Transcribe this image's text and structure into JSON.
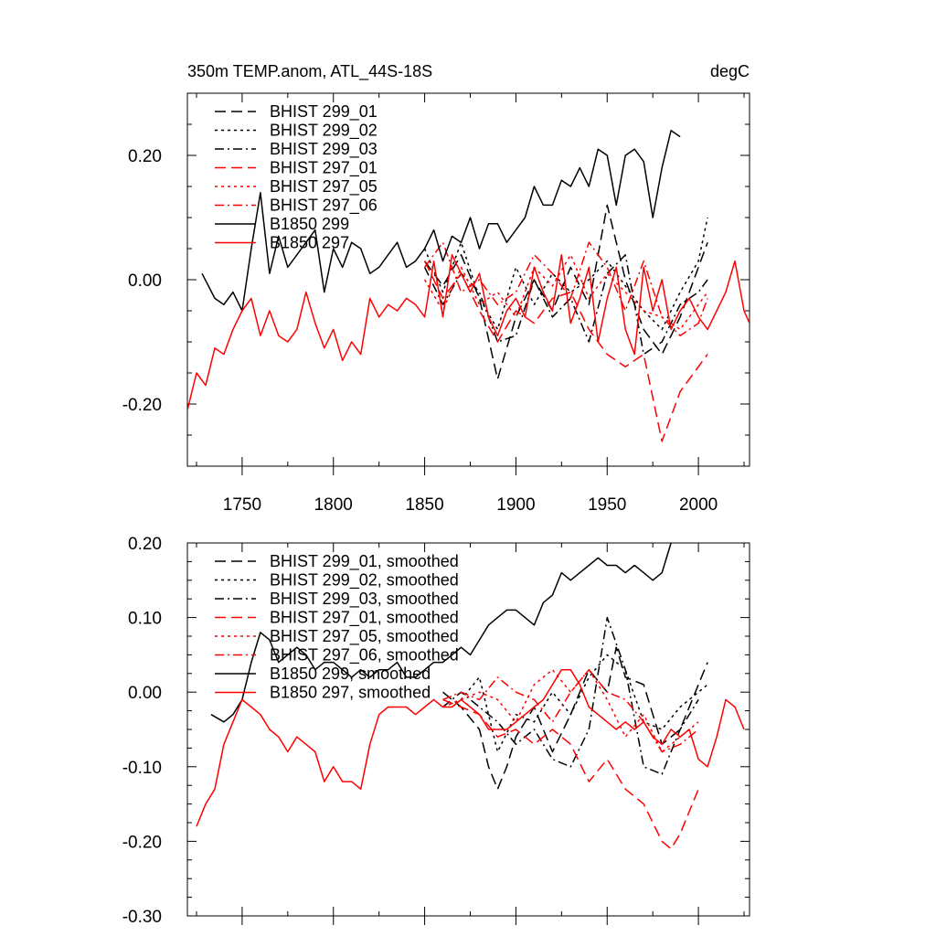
{
  "figure": {
    "panels": 2
  },
  "chart_data": [
    {
      "type": "line",
      "title": "350m TEMP.anom, ATL_44S-18S",
      "units": "degC",
      "xlabel": "",
      "ylabel": "",
      "xlim": [
        1720,
        2028
      ],
      "ylim": [
        -0.3,
        0.3
      ],
      "xticks": [
        1750,
        1800,
        1850,
        1900,
        1950,
        2000
      ],
      "xticklabels": [
        "1750",
        "1800",
        "1850",
        "1900",
        "1950",
        "2000"
      ],
      "yticks": [
        -0.2,
        0.0,
        0.2
      ],
      "yticklabels": [
        "-0.20",
        "0.00",
        "0.20"
      ],
      "grid": false,
      "legend_position": "top-left",
      "series": [
        {
          "name": "BHIST 299_01",
          "color": "#000000",
          "dash": "dashed",
          "x": [
            1850,
            1860,
            1870,
            1880,
            1890,
            1900,
            1910,
            1920,
            1930,
            1940,
            1950,
            1960,
            1970,
            1980,
            1990,
            2000,
            2005
          ],
          "y": [
            0.03,
            -0.01,
            0.04,
            -0.03,
            -0.16,
            -0.06,
            0.0,
            -0.05,
            0.02,
            -0.04,
            0.12,
            0.0,
            -0.08,
            -0.12,
            -0.06,
            0.02,
            0.06
          ]
        },
        {
          "name": "BHIST 299_02",
          "color": "#000000",
          "dash": "dotted",
          "x": [
            1850,
            1860,
            1870,
            1880,
            1890,
            1900,
            1910,
            1920,
            1930,
            1940,
            1950,
            1960,
            1970,
            1980,
            1990,
            2000,
            2005
          ],
          "y": [
            0.05,
            -0.02,
            0.06,
            -0.03,
            -0.08,
            0.02,
            -0.04,
            0.01,
            -0.02,
            0.0,
            0.03,
            -0.01,
            -0.05,
            -0.08,
            -0.02,
            0.03,
            0.1
          ]
        },
        {
          "name": "BHIST 299_03",
          "color": "#000000",
          "dash": "dashdot",
          "x": [
            1850,
            1860,
            1870,
            1880,
            1890,
            1900,
            1910,
            1920,
            1930,
            1940,
            1950,
            1960,
            1970,
            1980,
            1990,
            2000,
            2005
          ],
          "y": [
            0.02,
            -0.04,
            0.01,
            -0.02,
            -0.1,
            -0.09,
            0.0,
            -0.06,
            -0.03,
            -0.1,
            0.01,
            0.04,
            -0.12,
            -0.1,
            -0.04,
            -0.02,
            0.0
          ]
        },
        {
          "name": "BHIST 297_01",
          "color": "#ff0000",
          "dash": "dashed",
          "x": [
            1850,
            1860,
            1870,
            1880,
            1890,
            1900,
            1910,
            1920,
            1930,
            1940,
            1950,
            1960,
            1970,
            1980,
            1990,
            2000,
            2005
          ],
          "y": [
            0.03,
            -0.03,
            0.01,
            -0.05,
            -0.1,
            -0.05,
            -0.07,
            -0.03,
            -0.02,
            -0.08,
            -0.12,
            -0.14,
            -0.12,
            -0.26,
            -0.18,
            -0.14,
            -0.12
          ]
        },
        {
          "name": "BHIST 297_05",
          "color": "#ff0000",
          "dash": "dotted",
          "x": [
            1850,
            1860,
            1870,
            1880,
            1890,
            1900,
            1910,
            1920,
            1930,
            1940,
            1950,
            1960,
            1970,
            1980,
            1990,
            2000,
            2005
          ],
          "y": [
            0.0,
            -0.05,
            0.02,
            -0.04,
            -0.02,
            -0.06,
            0.02,
            -0.01,
            0.04,
            -0.03,
            0.01,
            -0.02,
            -0.05,
            -0.06,
            -0.08,
            -0.04,
            -0.02
          ]
        },
        {
          "name": "BHIST 297_06",
          "color": "#ff0000",
          "dash": "dashdot",
          "x": [
            1850,
            1860,
            1870,
            1880,
            1890,
            1900,
            1910,
            1920,
            1930,
            1940,
            1950,
            1960,
            1970,
            1980,
            1990,
            2000,
            2005
          ],
          "y": [
            0.02,
            0.06,
            -0.02,
            0.0,
            -0.04,
            -0.02,
            0.04,
            0.01,
            -0.03,
            0.06,
            0.02,
            -0.05,
            0.03,
            -0.06,
            -0.09,
            -0.07,
            -0.03
          ]
        },
        {
          "name": "B1850 299",
          "color": "#000000",
          "dash": "solid",
          "x": [
            1728,
            1735,
            1740,
            1745,
            1750,
            1755,
            1760,
            1765,
            1770,
            1775,
            1780,
            1785,
            1790,
            1795,
            1800,
            1805,
            1810,
            1815,
            1820,
            1825,
            1830,
            1835,
            1840,
            1845,
            1850,
            1855,
            1860,
            1865,
            1870,
            1875,
            1880,
            1885,
            1890,
            1895,
            1900,
            1905,
            1910,
            1915,
            1920,
            1925,
            1930,
            1935,
            1940,
            1945,
            1950,
            1955,
            1960,
            1965,
            1970,
            1975,
            1980,
            1985,
            1990
          ],
          "y": [
            0.01,
            -0.03,
            -0.04,
            -0.02,
            -0.05,
            0.05,
            0.14,
            0.01,
            0.07,
            0.02,
            0.04,
            0.06,
            0.08,
            -0.02,
            0.05,
            0.02,
            0.06,
            0.05,
            0.01,
            0.02,
            0.04,
            0.06,
            0.02,
            0.03,
            0.05,
            0.08,
            0.03,
            0.07,
            0.06,
            0.1,
            0.05,
            0.09,
            0.09,
            0.06,
            0.08,
            0.1,
            0.15,
            0.12,
            0.12,
            0.16,
            0.15,
            0.18,
            0.15,
            0.21,
            0.2,
            0.12,
            0.2,
            0.21,
            0.19,
            0.1,
            0.18,
            0.24,
            0.23
          ]
        },
        {
          "name": "B1850 297",
          "color": "#ff0000",
          "dash": "solid",
          "x": [
            1720,
            1725,
            1730,
            1735,
            1740,
            1745,
            1750,
            1755,
            1760,
            1765,
            1770,
            1775,
            1780,
            1785,
            1790,
            1795,
            1800,
            1805,
            1810,
            1815,
            1820,
            1825,
            1830,
            1835,
            1840,
            1845,
            1850,
            1855,
            1860,
            1865,
            1870,
            1875,
            1880,
            1885,
            1890,
            1895,
            1900,
            1905,
            1910,
            1915,
            1920,
            1925,
            1930,
            1935,
            1940,
            1945,
            1950,
            1955,
            1960,
            1965,
            1970,
            1975,
            1980,
            1985,
            1990,
            1995,
            2000,
            2005,
            2010,
            2015,
            2020,
            2025,
            2028
          ],
          "y": [
            -0.21,
            -0.15,
            -0.17,
            -0.11,
            -0.12,
            -0.08,
            -0.05,
            -0.03,
            -0.09,
            -0.05,
            -0.09,
            -0.1,
            -0.08,
            -0.02,
            -0.07,
            -0.11,
            -0.08,
            -0.13,
            -0.1,
            -0.12,
            -0.03,
            -0.06,
            -0.04,
            -0.05,
            -0.03,
            -0.04,
            -0.06,
            0.03,
            -0.06,
            0.04,
            0.01,
            -0.02,
            0.01,
            -0.06,
            -0.09,
            -0.05,
            -0.03,
            -0.06,
            0.02,
            -0.02,
            -0.05,
            0.04,
            -0.07,
            -0.03,
            0.02,
            -0.1,
            -0.03,
            0.02,
            -0.08,
            -0.12,
            0.02,
            -0.05,
            0.0,
            -0.08,
            -0.05,
            -0.03,
            -0.06,
            -0.08,
            -0.05,
            -0.02,
            0.03,
            -0.05,
            -0.07
          ]
        }
      ]
    },
    {
      "type": "line",
      "title": "",
      "xlabel": "",
      "ylabel": "",
      "xlim": [
        1720,
        2028
      ],
      "ylim": [
        -0.3,
        0.2
      ],
      "xticks": [
        1750,
        1800,
        1850,
        1900,
        1950,
        2000
      ],
      "yticks": [
        -0.3,
        -0.2,
        -0.1,
        0.0,
        0.1,
        0.2
      ],
      "yticklabels": [
        "-0.30",
        "-0.20",
        "-0.10",
        "0.00",
        "0.10",
        "0.20"
      ],
      "grid": false,
      "legend_position": "top-left",
      "series": [
        {
          "name": "BHIST 299_01, smoothed",
          "color": "#000000",
          "dash": "dashed",
          "x": [
            1860,
            1870,
            1880,
            1885,
            1890,
            1895,
            1900,
            1910,
            1920,
            1930,
            1940,
            1950,
            1955,
            1960,
            1970,
            1980,
            1990,
            2000,
            2005
          ],
          "y": [
            0.0,
            -0.02,
            -0.05,
            -0.1,
            -0.13,
            -0.1,
            -0.06,
            -0.02,
            -0.08,
            -0.03,
            0.03,
            0.0,
            0.06,
            0.02,
            0.01,
            -0.07,
            -0.05,
            0.01,
            0.04
          ]
        },
        {
          "name": "BHIST 299_02, smoothed",
          "color": "#000000",
          "dash": "dotted",
          "x": [
            1860,
            1870,
            1880,
            1890,
            1900,
            1910,
            1920,
            1930,
            1940,
            1950,
            1960,
            1970,
            1980,
            1990,
            2000,
            2005
          ],
          "y": [
            -0.02,
            -0.01,
            0.02,
            -0.08,
            -0.03,
            -0.04,
            0.0,
            -0.03,
            0.02,
            0.05,
            0.03,
            -0.04,
            -0.05,
            -0.02,
            0.0,
            0.01
          ]
        },
        {
          "name": "BHIST 299_03, smoothed",
          "color": "#000000",
          "dash": "dashdot",
          "x": [
            1860,
            1870,
            1880,
            1890,
            1900,
            1910,
            1920,
            1930,
            1940,
            1950,
            1960,
            1970,
            1980,
            1990,
            2000
          ],
          "y": [
            -0.02,
            0.0,
            -0.02,
            -0.04,
            -0.07,
            -0.05,
            -0.09,
            -0.1,
            -0.05,
            0.1,
            0.03,
            -0.1,
            -0.11,
            -0.05,
            -0.01
          ]
        },
        {
          "name": "BHIST 297_01, smoothed",
          "color": "#ff0000",
          "dash": "dashed",
          "x": [
            1860,
            1870,
            1880,
            1890,
            1900,
            1910,
            1920,
            1930,
            1940,
            1950,
            1960,
            1970,
            1980,
            1985,
            1990,
            2000
          ],
          "y": [
            -0.01,
            -0.02,
            -0.03,
            -0.06,
            -0.05,
            -0.07,
            -0.05,
            -0.07,
            -0.12,
            -0.09,
            -0.13,
            -0.15,
            -0.2,
            -0.21,
            -0.19,
            -0.13
          ]
        },
        {
          "name": "BHIST 297_05, smoothed",
          "color": "#ff0000",
          "dash": "dotted",
          "x": [
            1860,
            1870,
            1880,
            1890,
            1900,
            1910,
            1920,
            1930,
            1940,
            1950,
            1960,
            1970,
            1980,
            1990,
            2000
          ],
          "y": [
            -0.02,
            -0.01,
            0.0,
            -0.01,
            -0.04,
            0.01,
            0.03,
            0.0,
            0.03,
            -0.01,
            -0.06,
            -0.03,
            -0.08,
            -0.06,
            -0.04
          ]
        },
        {
          "name": "BHIST 297_06, smoothed",
          "color": "#ff0000",
          "dash": "dashdot",
          "x": [
            1860,
            1870,
            1880,
            1890,
            1900,
            1910,
            1920,
            1930,
            1940,
            1950,
            1960,
            1970,
            1980,
            1990,
            2000
          ],
          "y": [
            -0.01,
            0.0,
            -0.01,
            0.02,
            0.0,
            -0.01,
            -0.04,
            0.0,
            0.03,
            0.0,
            -0.01,
            -0.04,
            -0.08,
            -0.07,
            -0.05
          ]
        },
        {
          "name": "B1850 299, smoothed",
          "color": "#000000",
          "dash": "solid",
          "x": [
            1733,
            1740,
            1745,
            1750,
            1755,
            1760,
            1765,
            1770,
            1775,
            1780,
            1785,
            1790,
            1795,
            1800,
            1805,
            1810,
            1815,
            1820,
            1825,
            1830,
            1835,
            1840,
            1845,
            1850,
            1855,
            1860,
            1865,
            1870,
            1875,
            1880,
            1885,
            1890,
            1895,
            1900,
            1905,
            1910,
            1915,
            1920,
            1925,
            1930,
            1935,
            1940,
            1945,
            1950,
            1955,
            1960,
            1965,
            1970,
            1975,
            1980,
            1985
          ],
          "y": [
            -0.03,
            -0.04,
            -0.03,
            -0.01,
            0.04,
            0.08,
            0.07,
            0.04,
            0.05,
            0.06,
            0.05,
            0.03,
            0.04,
            0.04,
            0.03,
            0.02,
            0.03,
            0.02,
            0.03,
            0.03,
            0.04,
            0.02,
            0.02,
            0.03,
            0.04,
            0.04,
            0.05,
            0.06,
            0.05,
            0.07,
            0.09,
            0.1,
            0.11,
            0.11,
            0.1,
            0.09,
            0.12,
            0.13,
            0.16,
            0.15,
            0.16,
            0.17,
            0.18,
            0.17,
            0.17,
            0.16,
            0.17,
            0.16,
            0.15,
            0.16,
            0.2
          ]
        },
        {
          "name": "B1850 297, smoothed",
          "color": "#ff0000",
          "dash": "solid",
          "x": [
            1725,
            1730,
            1735,
            1740,
            1745,
            1750,
            1755,
            1760,
            1765,
            1770,
            1775,
            1780,
            1785,
            1790,
            1795,
            1800,
            1805,
            1810,
            1815,
            1820,
            1825,
            1830,
            1835,
            1840,
            1845,
            1850,
            1855,
            1860,
            1865,
            1870,
            1875,
            1880,
            1885,
            1890,
            1895,
            1900,
            1905,
            1910,
            1915,
            1920,
            1925,
            1930,
            1935,
            1940,
            1945,
            1950,
            1955,
            1960,
            1965,
            1970,
            1975,
            1980,
            1985,
            1990,
            1995,
            2000,
            2005,
            2010,
            2015,
            2020,
            2025
          ],
          "y": [
            -0.18,
            -0.15,
            -0.13,
            -0.07,
            -0.04,
            -0.01,
            -0.02,
            -0.03,
            -0.05,
            -0.06,
            -0.08,
            -0.06,
            -0.07,
            -0.08,
            -0.12,
            -0.1,
            -0.12,
            -0.12,
            -0.13,
            -0.07,
            -0.03,
            -0.02,
            -0.02,
            -0.02,
            -0.03,
            -0.02,
            -0.01,
            -0.02,
            -0.02,
            -0.01,
            -0.02,
            -0.03,
            -0.05,
            -0.05,
            -0.05,
            -0.04,
            -0.03,
            -0.02,
            -0.01,
            0.01,
            0.03,
            0.03,
            0.01,
            -0.02,
            -0.03,
            -0.04,
            -0.05,
            -0.04,
            -0.05,
            -0.04,
            -0.06,
            -0.07,
            -0.05,
            -0.06,
            -0.05,
            -0.09,
            -0.1,
            -0.06,
            -0.01,
            -0.02,
            -0.05
          ]
        }
      ]
    }
  ]
}
